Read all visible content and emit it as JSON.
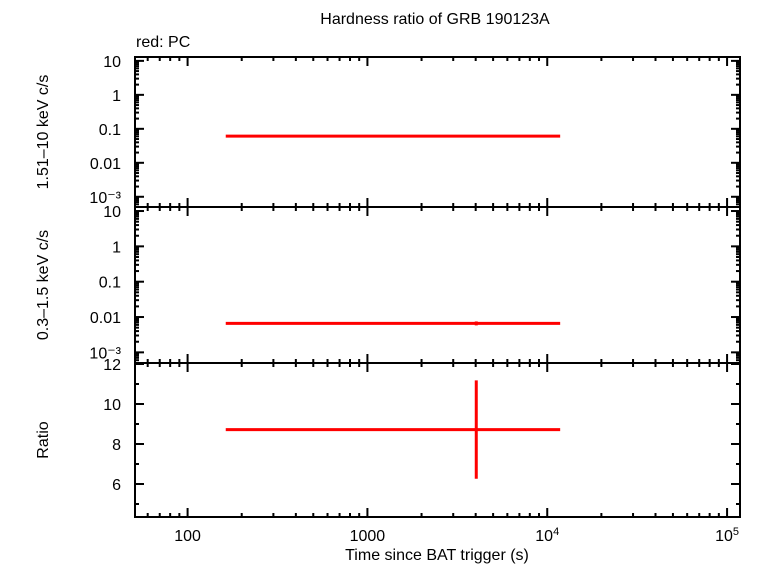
{
  "title": "Hardness ratio of GRB 190123A",
  "legend_note": "red: PC",
  "xlabel": "Time since BAT trigger (s)",
  "colors": {
    "series": "#ff0000",
    "axes": "#000000",
    "background": "#ffffff"
  },
  "chart_data": [
    {
      "type": "scatter",
      "panel": "top",
      "ylabel": "1.51–10 keV c/s",
      "xscale": "log",
      "yscale": "log",
      "xlim": [
        51,
        118000
      ],
      "ylim": [
        0.0005,
        13
      ],
      "yticks": [
        {
          "v": 10,
          "label": "10"
        },
        {
          "v": 1,
          "label": "1"
        },
        {
          "v": 0.1,
          "label": "0.1"
        },
        {
          "v": 0.01,
          "label": "0.01"
        },
        {
          "v": 0.001,
          "label": "10⁻³"
        }
      ],
      "series": [
        {
          "name": "PC",
          "color": "#ff0000",
          "points": [
            {
              "x": 4030,
              "xerr_lo": 163,
              "xerr_hi": 11800,
              "y": 0.061,
              "yerr_lo": 0.058,
              "yerr_hi": 0.064
            }
          ]
        }
      ]
    },
    {
      "type": "scatter",
      "panel": "middle",
      "ylabel": "0.3–1.5 keV c/s",
      "xscale": "log",
      "yscale": "log",
      "xlim": [
        51,
        118000
      ],
      "ylim": [
        0.0005,
        13
      ],
      "yticks": [
        {
          "v": 10,
          "label": "10"
        },
        {
          "v": 1,
          "label": "1"
        },
        {
          "v": 0.1,
          "label": "0.1"
        },
        {
          "v": 0.01,
          "label": "0.01"
        },
        {
          "v": 0.001,
          "label": "10⁻³"
        }
      ],
      "series": [
        {
          "name": "PC",
          "color": "#ff0000",
          "points": [
            {
              "x": 4030,
              "xerr_lo": 163,
              "xerr_hi": 11800,
              "y": 0.0066,
              "yerr_lo": 0.0058,
              "yerr_hi": 0.0075
            }
          ]
        }
      ]
    },
    {
      "type": "scatter",
      "panel": "bottom",
      "ylabel": "Ratio",
      "xscale": "log",
      "yscale": "linear",
      "xlim": [
        51,
        118000
      ],
      "ylim": [
        4.35,
        12.05
      ],
      "yticks": [
        {
          "v": 12,
          "label": "12"
        },
        {
          "v": 10,
          "label": "10"
        },
        {
          "v": 8,
          "label": "8"
        },
        {
          "v": 6,
          "label": "6"
        }
      ],
      "series": [
        {
          "name": "PC",
          "color": "#ff0000",
          "points": [
            {
              "x": 4030,
              "xerr_lo": 163,
              "xerr_hi": 11800,
              "y": 8.72,
              "yerr_lo": 6.26,
              "yerr_hi": 11.18
            }
          ]
        }
      ]
    }
  ],
  "xticks": [
    {
      "v": 100,
      "label": "100"
    },
    {
      "v": 1000,
      "label": "1000"
    },
    {
      "v": 10000,
      "label": "10",
      "sup": "4"
    },
    {
      "v": 100000,
      "label": "10",
      "sup": "5"
    }
  ]
}
